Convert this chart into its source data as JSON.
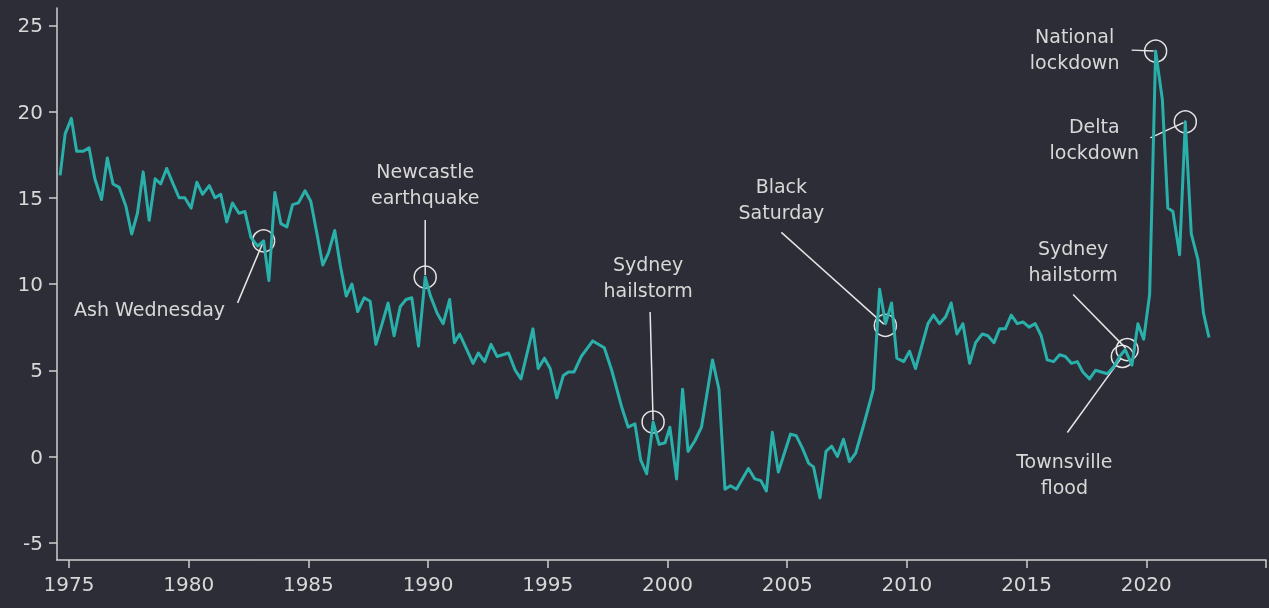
{
  "chart_data": {
    "type": "line",
    "x": [
      1974.63,
      1974.84,
      1975.1,
      1975.32,
      1975.6,
      1975.84,
      1976.08,
      1976.36,
      1976.6,
      1976.84,
      1977.1,
      1977.38,
      1977.62,
      1977.86,
      1978.1,
      1978.35,
      1978.6,
      1978.83,
      1979.08,
      1979.35,
      1979.6,
      1979.84,
      1980.1,
      1980.34,
      1980.58,
      1980.86,
      1981.1,
      1981.34,
      1981.59,
      1981.83,
      1982.1,
      1982.35,
      1982.6,
      1982.88,
      1983.13,
      1983.35,
      1983.6,
      1983.85,
      1984.1,
      1984.34,
      1984.58,
      1984.86,
      1985.1,
      1985.36,
      1985.6,
      1985.84,
      1986.1,
      1986.33,
      1986.58,
      1986.82,
      1987.06,
      1987.33,
      1987.58,
      1987.82,
      1988.06,
      1988.33,
      1988.58,
      1988.84,
      1989.08,
      1989.32,
      1989.6,
      1989.88,
      1990.1,
      1990.38,
      1990.63,
      1990.9,
      1991.1,
      1991.32,
      1991.88,
      1992.1,
      1992.36,
      1992.63,
      1992.88,
      1993.36,
      1993.64,
      1993.88,
      1994.38,
      1994.6,
      1994.86,
      1995.1,
      1995.38,
      1995.65,
      1995.86,
      1996.1,
      1996.4,
      1996.88,
      1997.36,
      1997.67,
      1998.08,
      1998.36,
      1998.64,
      1998.88,
      1999.13,
      1999.4,
      1999.65,
      1999.9,
      2000.1,
      2000.38,
      2000.63,
      2000.86,
      2001.14,
      2001.42,
      2001.88,
      2002.15,
      2002.4,
      2002.63,
      2002.88,
      2003.38,
      2003.65,
      2003.9,
      2004.13,
      2004.38,
      2004.63,
      2005.14,
      2005.38,
      2005.63,
      2005.9,
      2006.1,
      2006.37,
      2006.62,
      2006.86,
      2007.1,
      2007.35,
      2007.6,
      2007.86,
      2008.23,
      2008.6,
      2008.86,
      2009.11,
      2009.36,
      2009.58,
      2009.87,
      2010.11,
      2010.36,
      2010.88,
      2011.11,
      2011.36,
      2011.62,
      2011.85,
      2012.09,
      2012.34,
      2012.62,
      2012.87,
      2013.15,
      2013.38,
      2013.64,
      2013.87,
      2014.11,
      2014.36,
      2014.61,
      2014.85,
      2015.1,
      2015.36,
      2015.61,
      2015.86,
      2016.13,
      2016.38,
      2016.62,
      2016.87,
      2017.12,
      2017.35,
      2017.63,
      2017.88,
      2018.12,
      2018.37,
      2018.64,
      2018.89,
      2019.12,
      2019.4,
      2019.65,
      2019.89,
      2020.14,
      2020.39,
      2020.67,
      2020.9,
      2021.11,
      2021.39,
      2021.63,
      2021.88,
      2022.16,
      2022.39,
      2022.62
    ],
    "series": [
      {
        "color": "#2ab0aa",
        "values": [
          16.3,
          18.7,
          19.6,
          17.7,
          17.7,
          17.9,
          16.1,
          14.9,
          17.3,
          15.8,
          15.6,
          14.5,
          12.9,
          14.1,
          16.5,
          13.7,
          16.1,
          15.8,
          16.7,
          15.8,
          15.0,
          15.0,
          14.4,
          15.9,
          15.2,
          15.7,
          15.0,
          15.2,
          13.6,
          14.7,
          14.1,
          14.2,
          12.7,
          12.2,
          12.5,
          10.2,
          15.3,
          13.5,
          13.3,
          14.6,
          14.7,
          15.4,
          14.8,
          12.9,
          11.1,
          11.8,
          13.1,
          11.1,
          9.3,
          10.0,
          8.4,
          9.2,
          9.0,
          6.5,
          7.6,
          8.9,
          7.0,
          8.7,
          9.1,
          9.2,
          6.4,
          10.4,
          9.3,
          8.3,
          7.7,
          9.1,
          6.6,
          7.1,
          5.4,
          6.0,
          5.5,
          6.5,
          5.8,
          6.0,
          5.0,
          4.5,
          7.4,
          5.1,
          5.7,
          5.1,
          3.4,
          4.7,
          4.9,
          4.9,
          5.8,
          6.7,
          6.3,
          5.0,
          2.9,
          1.7,
          1.9,
          -0.2,
          -1.0,
          2.0,
          0.7,
          0.8,
          1.7,
          -1.3,
          3.9,
          0.3,
          0.9,
          1.7,
          5.6,
          3.9,
          -1.9,
          -1.7,
          -1.9,
          -0.7,
          -1.3,
          -1.4,
          -2.0,
          1.4,
          -0.9,
          1.3,
          1.2,
          0.5,
          -0.4,
          -0.6,
          -2.4,
          0.3,
          0.6,
          0.0,
          1.0,
          -0.3,
          0.2,
          2.0,
          3.9,
          9.7,
          7.7,
          8.9,
          5.7,
          5.5,
          6.1,
          5.1,
          7.7,
          8.2,
          7.7,
          8.1,
          8.9,
          7.1,
          7.7,
          5.4,
          6.6,
          7.1,
          7.0,
          6.6,
          7.4,
          7.4,
          8.2,
          7.7,
          7.8,
          7.5,
          7.7,
          7.0,
          5.6,
          5.5,
          5.9,
          5.8,
          5.4,
          5.5,
          4.9,
          4.5,
          5.0,
          4.9,
          4.8,
          5.2,
          5.8,
          6.2,
          5.3,
          7.7,
          6.8,
          9.4,
          23.5,
          20.7,
          14.4,
          14.2,
          11.7,
          19.4,
          12.9,
          11.4,
          8.3,
          6.9
        ]
      }
    ],
    "xlim": [
      1974.5,
      2025
    ],
    "xticks": [
      1975,
      1980,
      1985,
      1990,
      1995,
      2000,
      2005,
      2010,
      2015,
      2020,
      {
        "value": 2025,
        "label": null
      }
    ],
    "ylim": [
      -6,
      26
    ],
    "yticks": [
      -5,
      0,
      5,
      10,
      15,
      20,
      25
    ],
    "grid": false,
    "marker": "none",
    "line_style": "solid",
    "annotations": [
      {
        "text": "Ash Wednesday",
        "x": 1983.13,
        "y": 12.5
      },
      {
        "text": "Newcastle\nearthquake",
        "x": 1989.88,
        "y": 10.4
      },
      {
        "text": "Sydney\nhailstorm",
        "x": 1999.4,
        "y": 2.0
      },
      {
        "text": "Black\nSaturday",
        "x": 2009.1,
        "y": 7.6
      },
      {
        "text": "Sydney\nhailstorm",
        "x": 2019.2,
        "y": 6.2
      },
      {
        "text": "Townsville\nflood",
        "x": 2019.0,
        "y": 5.8
      },
      {
        "text": "National\nlockdown",
        "x": 2020.39,
        "y": 23.5
      },
      {
        "text": "Delta\nlockdown",
        "x": 2021.63,
        "y": 19.4
      }
    ]
  }
}
